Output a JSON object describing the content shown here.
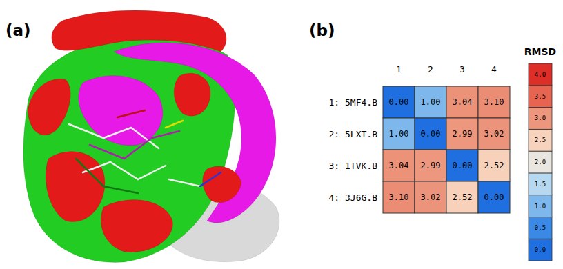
{
  "panel_labels": [
    "(a)",
    "(b)"
  ],
  "chart_data": {
    "type": "heatmap",
    "x": [
      "1",
      "2",
      "3",
      "4"
    ],
    "categories": [
      "1: 5MF4.B",
      "2: 5LXT.B",
      "3: 1TVK.B",
      "4: 3J6G.B"
    ],
    "values": [
      [
        0,
        1,
        3.04,
        3.1
      ],
      [
        1,
        0,
        2.99,
        3.02
      ],
      [
        3.04,
        2.99,
        0,
        2.52
      ],
      [
        3.1,
        3.02,
        2.52,
        0
      ]
    ],
    "value_labels": [
      [
        "0.00",
        "1.00",
        "3.04",
        "3.10"
      ],
      [
        "1.00",
        "0.00",
        "2.99",
        "3.02"
      ],
      [
        "3.04",
        "2.99",
        "0.00",
        "2.52"
      ],
      [
        "3.10",
        "3.02",
        "2.52",
        "0.00"
      ]
    ],
    "data_labels": true,
    "colorbar": {
      "title": "RMSD",
      "range": [
        0,
        4
      ],
      "ticks": [
        {
          "value": 0,
          "label": "0.0"
        },
        {
          "value": 0.5,
          "label": "0.5"
        },
        {
          "value": 1,
          "label": "1.0"
        },
        {
          "value": 1.5,
          "label": "1.5"
        },
        {
          "value": 2,
          "label": "2.0"
        },
        {
          "value": 2.5,
          "label": "2.5"
        },
        {
          "value": 3,
          "label": "3.0"
        },
        {
          "value": 3.5,
          "label": "3.5"
        },
        {
          "value": 4,
          "label": "4.0"
        }
      ]
    }
  }
}
